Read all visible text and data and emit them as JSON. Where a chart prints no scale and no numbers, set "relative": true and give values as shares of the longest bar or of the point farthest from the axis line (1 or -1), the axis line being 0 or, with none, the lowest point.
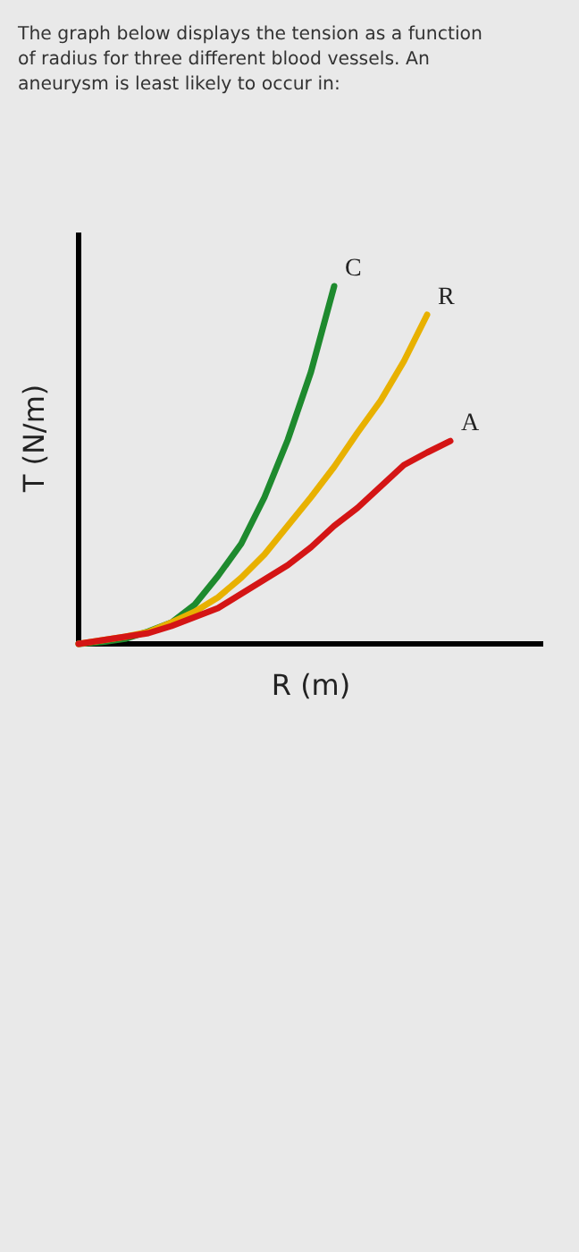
{
  "chart_data": {
    "type": "line",
    "relative": true,
    "title": "The graph below displays the tension as a function of radius for three different blood vessels. An aneurysm is least likely to occur in:",
    "xlabel": "R (m)",
    "ylabel": "T (N/m)",
    "line_style": "solid",
    "categories": [
      null,
      null,
      null,
      null,
      null,
      null,
      null,
      null,
      null,
      null,
      null,
      null,
      null,
      null,
      null,
      null,
      null
    ],
    "series": [
      {
        "name": "C",
        "color": "#1e8a2e",
        "values": [
          0,
          0.005,
          0.014,
          0.035,
          0.06,
          0.11,
          0.19,
          0.28,
          0.41,
          0.57,
          0.76,
          1,
          null,
          null,
          null,
          null,
          null
        ]
      },
      {
        "name": "R",
        "color": "#e8b100",
        "values": [
          0,
          0.01,
          0.02,
          0.033,
          0.06,
          0.09,
          0.13,
          0.185,
          0.25,
          0.33,
          0.41,
          0.495,
          0.59,
          0.68,
          0.79,
          0.92,
          null
        ]
      },
      {
        "name": "A",
        "color": "#d41515",
        "values": [
          0,
          0.01,
          0.02,
          0.03,
          0.05,
          0.075,
          0.1,
          0.14,
          0.18,
          0.22,
          0.27,
          0.33,
          0.38,
          0.44,
          0.5,
          0.535,
          0.567
        ]
      }
    ]
  }
}
